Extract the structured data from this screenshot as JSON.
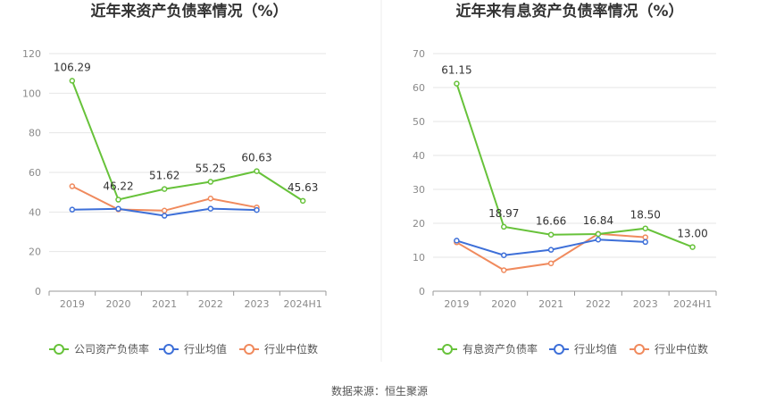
{
  "source": "数据来源：恒生聚源",
  "colors": {
    "company": "#67c23a",
    "industry_avg": "#3d6fd8",
    "industry_median": "#f08a5d",
    "grid": "#e6e6e6",
    "axis": "#999999",
    "divider": "#eeeeee"
  },
  "legend_icons": {
    "company": "circle-line-green-icon",
    "industry_avg": "circle-line-blue-icon",
    "industry_median": "circle-line-orange-icon"
  },
  "chart_data": [
    {
      "type": "line",
      "title": "近年来资产负债率情况（%）",
      "categories": [
        "2019",
        "2020",
        "2021",
        "2022",
        "2023",
        "2024H1"
      ],
      "ylim": [
        0,
        120
      ],
      "yticks": [
        0,
        20,
        40,
        60,
        80,
        100,
        120
      ],
      "grid": true,
      "legend_position": "bottom",
      "series": [
        {
          "name": "公司资产负债率",
          "key": "company",
          "values": [
            106.29,
            46.22,
            51.62,
            55.25,
            60.63,
            45.63
          ],
          "labels": [
            "106.29",
            "46.22",
            "51.62",
            "55.25",
            "60.63",
            "45.63"
          ]
        },
        {
          "name": "行业均值",
          "key": "industry_avg",
          "values": [
            41.2,
            41.6,
            38.1,
            41.7,
            41.0,
            null
          ]
        },
        {
          "name": "行业中位数",
          "key": "industry_median",
          "values": [
            53.0,
            41.3,
            40.7,
            46.8,
            42.3,
            null
          ]
        }
      ]
    },
    {
      "type": "line",
      "title": "近年来有息资产负债率情况（%）",
      "categories": [
        "2019",
        "2020",
        "2021",
        "2022",
        "2023",
        "2024H1"
      ],
      "ylim": [
        0,
        70
      ],
      "yticks": [
        0,
        10,
        20,
        30,
        40,
        50,
        60,
        70
      ],
      "grid": true,
      "legend_position": "bottom",
      "series": [
        {
          "name": "有息资产负债率",
          "key": "company",
          "values": [
            61.15,
            18.97,
            16.66,
            16.84,
            18.5,
            13.0
          ],
          "labels": [
            "61.15",
            "18.97",
            "16.66",
            "16.84",
            "18.50",
            "13.00"
          ]
        },
        {
          "name": "行业均值",
          "key": "industry_avg",
          "values": [
            14.9,
            10.6,
            12.2,
            15.2,
            14.5,
            null
          ]
        },
        {
          "name": "行业中位数",
          "key": "industry_median",
          "values": [
            14.4,
            6.2,
            8.2,
            16.9,
            15.9,
            null
          ]
        }
      ]
    }
  ]
}
